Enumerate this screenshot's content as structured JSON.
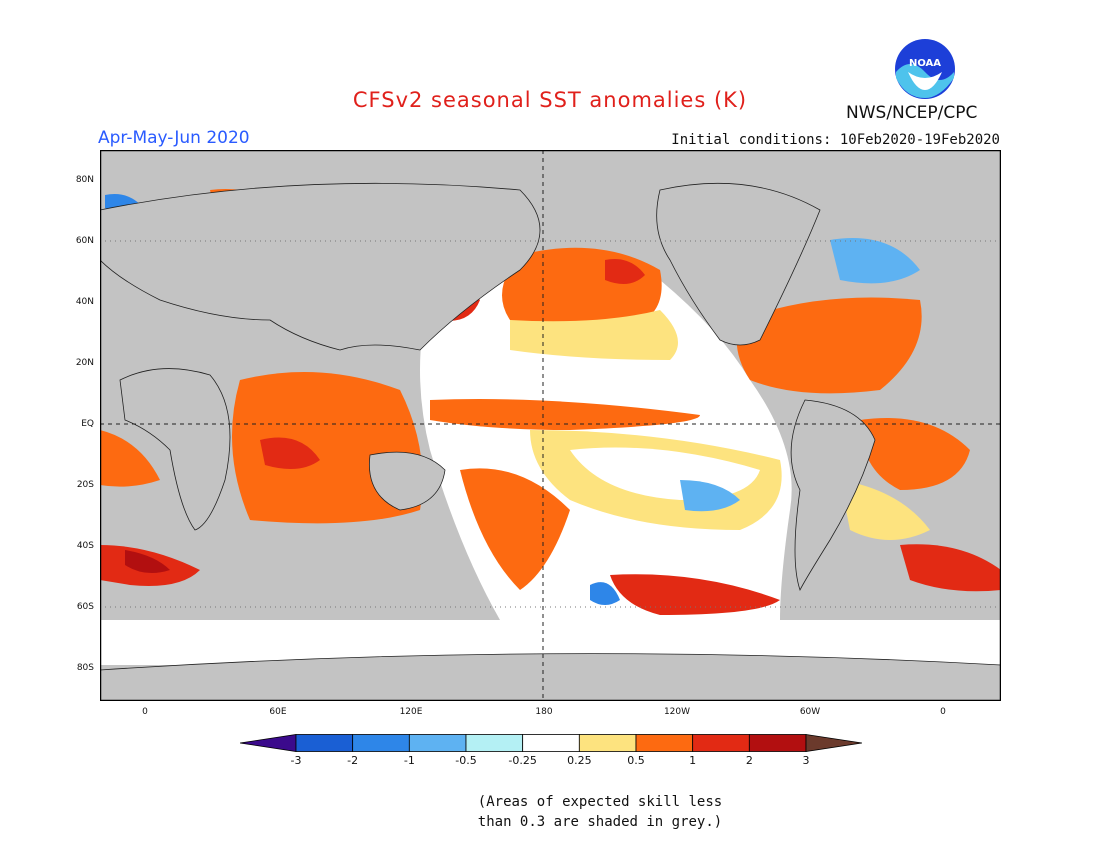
{
  "title": "CFSv2 seasonal SST anomalies (K)",
  "season": "Apr-May-Jun 2020",
  "initial_conditions": "Initial conditions: 10Feb2020-19Feb2020",
  "agency": "NWS/NCEP/CPC",
  "logo_text": "NOAA",
  "lat_labels": [
    "80N",
    "60N",
    "40N",
    "20N",
    "EQ",
    "20S",
    "40S",
    "60S",
    "80S"
  ],
  "lon_labels": [
    "0",
    "60E",
    "120E",
    "180",
    "120W",
    "60W",
    "0"
  ],
  "colorbar": {
    "labels": [
      "-3",
      "-2",
      "-1",
      "-0.5",
      "-0.25",
      "0.25",
      "0.5",
      "1",
      "2",
      "3"
    ],
    "colors": [
      "#3b0a8c",
      "#1a5fd4",
      "#2e86e8",
      "#5eb2f2",
      "#b4f0f4",
      "#ffffff",
      "#fde37f",
      "#fd6a11",
      "#e22a14",
      "#b20f10",
      "#6b3a2c"
    ]
  },
  "note": "(Areas of expected skill less than 0.3 are shaded in grey.)"
}
